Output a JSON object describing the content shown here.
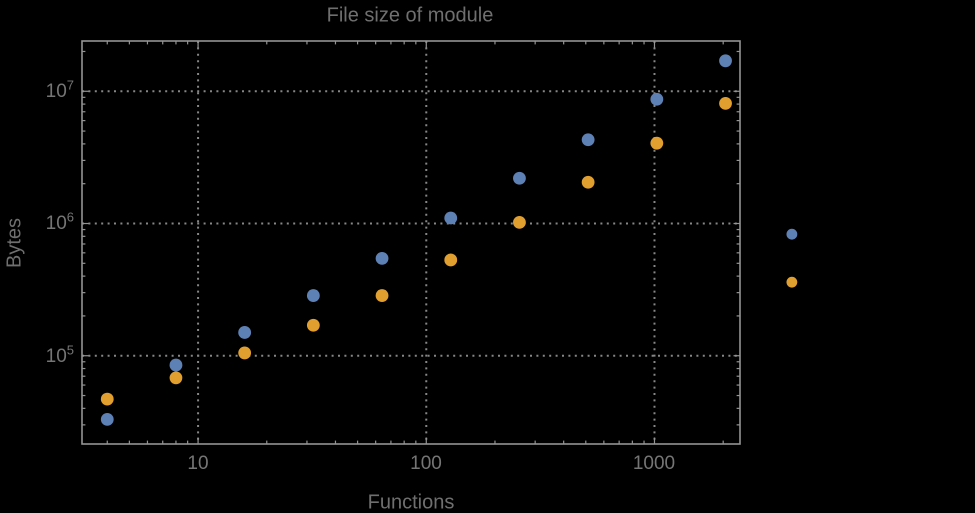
{
  "window": {
    "background_color": "#000000"
  },
  "chart": {
    "title": "File size of module",
    "x_axis": {
      "label": "Functions",
      "tick_labels": [
        "10",
        "100",
        "1000"
      ]
    },
    "y_axis": {
      "label": "Bytes",
      "tick_labels": [
        {
          "base": "10",
          "exp": "5"
        },
        {
          "base": "10",
          "exp": "6"
        },
        {
          "base": "10",
          "exp": "7"
        }
      ]
    }
  },
  "chart_data": {
    "type": "scatter",
    "title": "File size of module",
    "xlabel": "Functions",
    "ylabel": "Bytes",
    "x_scale": "log",
    "y_scale": "log",
    "grid": "dotted",
    "frame": true,
    "xlim": [
      3.1,
      2370
    ],
    "ylim": [
      21500,
      24000000
    ],
    "x_gridlines": [
      10,
      100,
      1000
    ],
    "y_gridlines": [
      100000,
      1000000,
      10000000
    ],
    "series": [
      {
        "name": "blue",
        "color": "#5E81B5",
        "points": [
          [
            4,
            33000
          ],
          [
            8,
            85000
          ],
          [
            16,
            150000
          ],
          [
            32,
            285000
          ],
          [
            64,
            545000
          ],
          [
            128,
            1100000
          ],
          [
            256,
            2200000
          ],
          [
            512,
            4300000
          ],
          [
            1024,
            8700000
          ],
          [
            2048,
            17000000
          ]
        ]
      },
      {
        "name": "orange",
        "color": "#E09F2E",
        "points": [
          [
            4,
            47000
          ],
          [
            8,
            68000
          ],
          [
            16,
            105000
          ],
          [
            32,
            170000
          ],
          [
            64,
            285000
          ],
          [
            128,
            530000
          ],
          [
            256,
            1020000
          ],
          [
            512,
            2050000
          ],
          [
            1024,
            4050000
          ],
          [
            2048,
            8100000
          ]
        ]
      }
    ],
    "right_margin_markers": [
      {
        "color": "#5E81B5",
        "x": 4000,
        "y": 830000
      },
      {
        "color": "#E09F2E",
        "x": 4000,
        "y": 360000
      }
    ]
  }
}
